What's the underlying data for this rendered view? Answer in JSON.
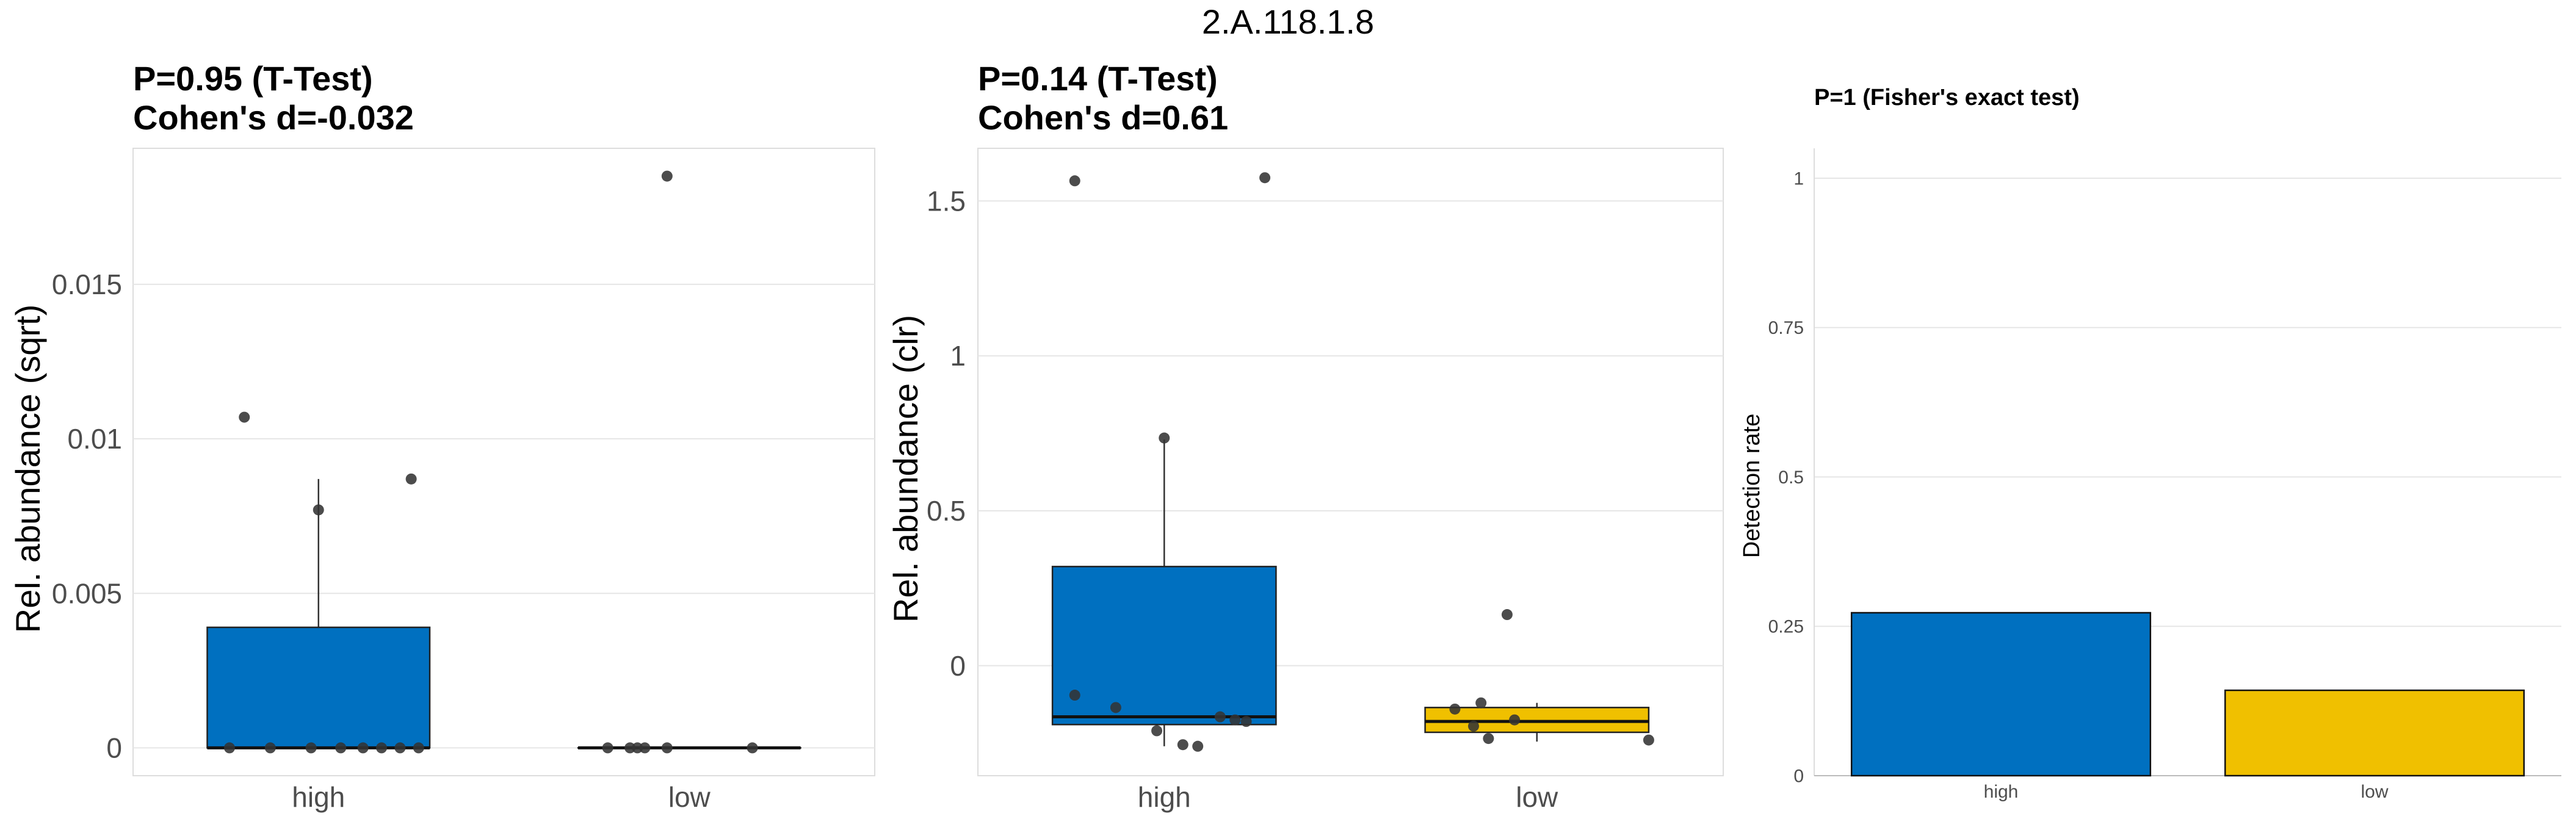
{
  "figure": {
    "title": "2.A.118.1.8"
  },
  "colors": {
    "high": "#0070c0",
    "low": "#f0c000",
    "point": "#333333",
    "grid": "#e6e6e6",
    "panel_border": "#dddddd",
    "text": "#4d4d4d"
  },
  "chart_data": [
    {
      "type": "box",
      "title_line1": "P=0.95 (T-Test)",
      "title_line2": "Cohen's d=-0.032",
      "ylabel": "Rel. abundance (sqrt)",
      "ylim": [
        -0.0009,
        0.0194
      ],
      "yticks": [
        0,
        0.005,
        0.01,
        0.015
      ],
      "ytick_labels": [
        "0",
        "0.005",
        "0.01",
        "0.015"
      ],
      "categories": [
        "high",
        "low"
      ],
      "boxes": [
        {
          "group": "high",
          "q1": 0,
          "median": 0,
          "q3": 0.0039,
          "whisker_low": 0,
          "whisker_high": 0.0087,
          "fill": "#0070c0"
        },
        {
          "group": "low",
          "q1": 0,
          "median": 0,
          "q3": 0,
          "whisker_low": 0,
          "whisker_high": 0,
          "fill": "#0070c0"
        }
      ],
      "points": [
        {
          "group": "high",
          "jitter": -0.2,
          "y": 0.0107
        },
        {
          "group": "high",
          "jitter": 0.0,
          "y": 0.0077
        },
        {
          "group": "high",
          "jitter": 0.25,
          "y": 0.0087
        },
        {
          "group": "high",
          "jitter": -0.24,
          "y": 0
        },
        {
          "group": "high",
          "jitter": -0.13,
          "y": 0
        },
        {
          "group": "high",
          "jitter": -0.02,
          "y": 0
        },
        {
          "group": "high",
          "jitter": 0.06,
          "y": 0
        },
        {
          "group": "high",
          "jitter": 0.12,
          "y": 0
        },
        {
          "group": "high",
          "jitter": 0.17,
          "y": 0
        },
        {
          "group": "high",
          "jitter": 0.22,
          "y": 0
        },
        {
          "group": "high",
          "jitter": 0.27,
          "y": 0
        },
        {
          "group": "low",
          "jitter": -0.22,
          "y": 0
        },
        {
          "group": "low",
          "jitter": -0.16,
          "y": 0
        },
        {
          "group": "low",
          "jitter": -0.14,
          "y": 0
        },
        {
          "group": "low",
          "jitter": -0.12,
          "y": 0
        },
        {
          "group": "low",
          "jitter": -0.06,
          "y": 0
        },
        {
          "group": "low",
          "jitter": 0.17,
          "y": 0
        },
        {
          "group": "low",
          "jitter": -0.06,
          "y": 0.0185
        }
      ]
    },
    {
      "type": "box",
      "title_line1": "P=0.14 (T-Test)",
      "title_line2": "Cohen's d=0.61",
      "ylabel": "Rel. abundance (clr)",
      "ylim": [
        -0.355,
        1.67
      ],
      "yticks": [
        0,
        0.5,
        1,
        1.5
      ],
      "ytick_labels": [
        "0",
        "0.5",
        "1",
        "1.5"
      ],
      "categories": [
        "high",
        "low"
      ],
      "boxes": [
        {
          "group": "high",
          "q1": -0.19,
          "median": -0.165,
          "q3": 0.32,
          "whisker_low": -0.26,
          "whisker_high": 0.73,
          "fill": "#0070c0"
        },
        {
          "group": "low",
          "q1": -0.215,
          "median": -0.18,
          "q3": -0.135,
          "whisker_low": -0.245,
          "whisker_high": -0.12,
          "fill": "#f0c000"
        }
      ],
      "points": [
        {
          "group": "high",
          "jitter": -0.24,
          "y": 1.565
        },
        {
          "group": "high",
          "jitter": 0.27,
          "y": 1.575
        },
        {
          "group": "high",
          "jitter": 0.0,
          "y": 0.735
        },
        {
          "group": "high",
          "jitter": -0.24,
          "y": -0.095
        },
        {
          "group": "high",
          "jitter": -0.13,
          "y": -0.135
        },
        {
          "group": "high",
          "jitter": -0.02,
          "y": -0.21
        },
        {
          "group": "high",
          "jitter": 0.05,
          "y": -0.255
        },
        {
          "group": "high",
          "jitter": 0.09,
          "y": -0.26
        },
        {
          "group": "high",
          "jitter": 0.15,
          "y": -0.165
        },
        {
          "group": "high",
          "jitter": 0.19,
          "y": -0.175
        },
        {
          "group": "high",
          "jitter": 0.22,
          "y": -0.18
        },
        {
          "group": "low",
          "jitter": -0.22,
          "y": -0.14
        },
        {
          "group": "low",
          "jitter": -0.15,
          "y": -0.12
        },
        {
          "group": "low",
          "jitter": -0.17,
          "y": -0.195
        },
        {
          "group": "low",
          "jitter": -0.13,
          "y": -0.235
        },
        {
          "group": "low",
          "jitter": -0.06,
          "y": -0.175
        },
        {
          "group": "low",
          "jitter": 0.3,
          "y": -0.24
        },
        {
          "group": "low",
          "jitter": -0.08,
          "y": 0.165
        }
      ]
    },
    {
      "type": "bar",
      "title_line1": "P=1 (Fisher's exact test)",
      "title_line2": "",
      "ylabel": "Detection rate",
      "ylim": [
        0,
        1.05
      ],
      "yticks": [
        0,
        0.25,
        0.5,
        0.75,
        1
      ],
      "ytick_labels": [
        "0",
        "0.25",
        "0.5",
        "0.75",
        "1"
      ],
      "categories": [
        "high",
        "low"
      ],
      "values": [
        0.2727,
        0.1429
      ],
      "fills": [
        "#0070c0",
        "#f0c000"
      ]
    }
  ]
}
